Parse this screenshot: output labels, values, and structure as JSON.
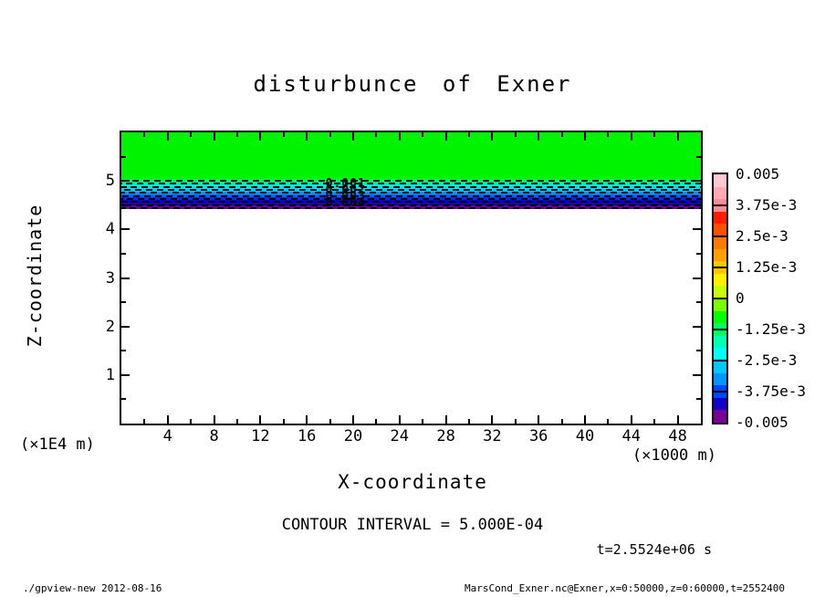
{
  "chart_data": {
    "type": "heatmap",
    "title": "disturbunce of Exner",
    "xlabel": "X-coordinate",
    "ylabel": "Z-coordinate",
    "x_unit": "(×1000 m)",
    "y_unit": "(×1E4 m)",
    "xlim": [
      0,
      50
    ],
    "ylim": [
      0,
      6
    ],
    "x_major_ticks": [
      4,
      8,
      12,
      16,
      20,
      24,
      28,
      32,
      36,
      40,
      44,
      48
    ],
    "x_minor_ticks": [
      2,
      6,
      10,
      14,
      18,
      22,
      26,
      30,
      34,
      38,
      42,
      46
    ],
    "y_major_ticks": [
      1,
      2,
      3,
      4,
      5
    ],
    "y_minor_ticks": [
      0.5,
      1.5,
      2.5,
      3.5,
      4.5,
      5.5
    ],
    "contour_interval_text": "CONTOUR INTERVAL = 5.000E-04",
    "time_label": "t=2.5524e+06 s",
    "field": {
      "description": "uniform near-zero (green) region above z≈5.0e4 m; thin negative disturbance layer between z≈4.43e4 and 5.05e4 m reaching ≈-0.005; zero (white) below",
      "background_value": 0,
      "layer_z_top": 5.05,
      "layer_z_bottom": 4.43,
      "layer_min_value": -0.005,
      "band_colors": [
        "#00fa50",
        "#00f596",
        "#00f0d2",
        "#00e1f0",
        "#00c3ff",
        "#0096ff",
        "#0064ff",
        "#0028ff",
        "#0000dc",
        "#1e00a0",
        "#640096"
      ],
      "dashed_contour_count": 10,
      "green_fill": "#00f400"
    },
    "contour_labels": [
      "0.001",
      "0.002",
      "0.003",
      "0.004"
    ],
    "contour_label_x_units": 19.5,
    "colorbar": {
      "labels": [
        "0.005",
        "3.75e-3",
        "2.5e-3",
        "1.25e-3",
        "0",
        "-1.25e-3",
        "-2.5e-3",
        "-3.75e-3",
        "-0.005"
      ],
      "colors": [
        "#ffc8d2",
        "#ffaab4",
        "#ff8c96",
        "#ff1e00",
        "#ff5000",
        "#ff7800",
        "#ffa000",
        "#ffc800",
        "#fff000",
        "#c8ff00",
        "#78ff00",
        "#00ff00",
        "#00ff64",
        "#00ffb4",
        "#00ffff",
        "#00c8ff",
        "#0096ff",
        "#0046ff",
        "#1400c8",
        "#780096"
      ]
    },
    "footer_left": "./gpview-new  2012-08-16",
    "footer_right": "MarsCond_Exner.nc@Exner,x=0:50000,z=0:60000,t=2552400"
  }
}
